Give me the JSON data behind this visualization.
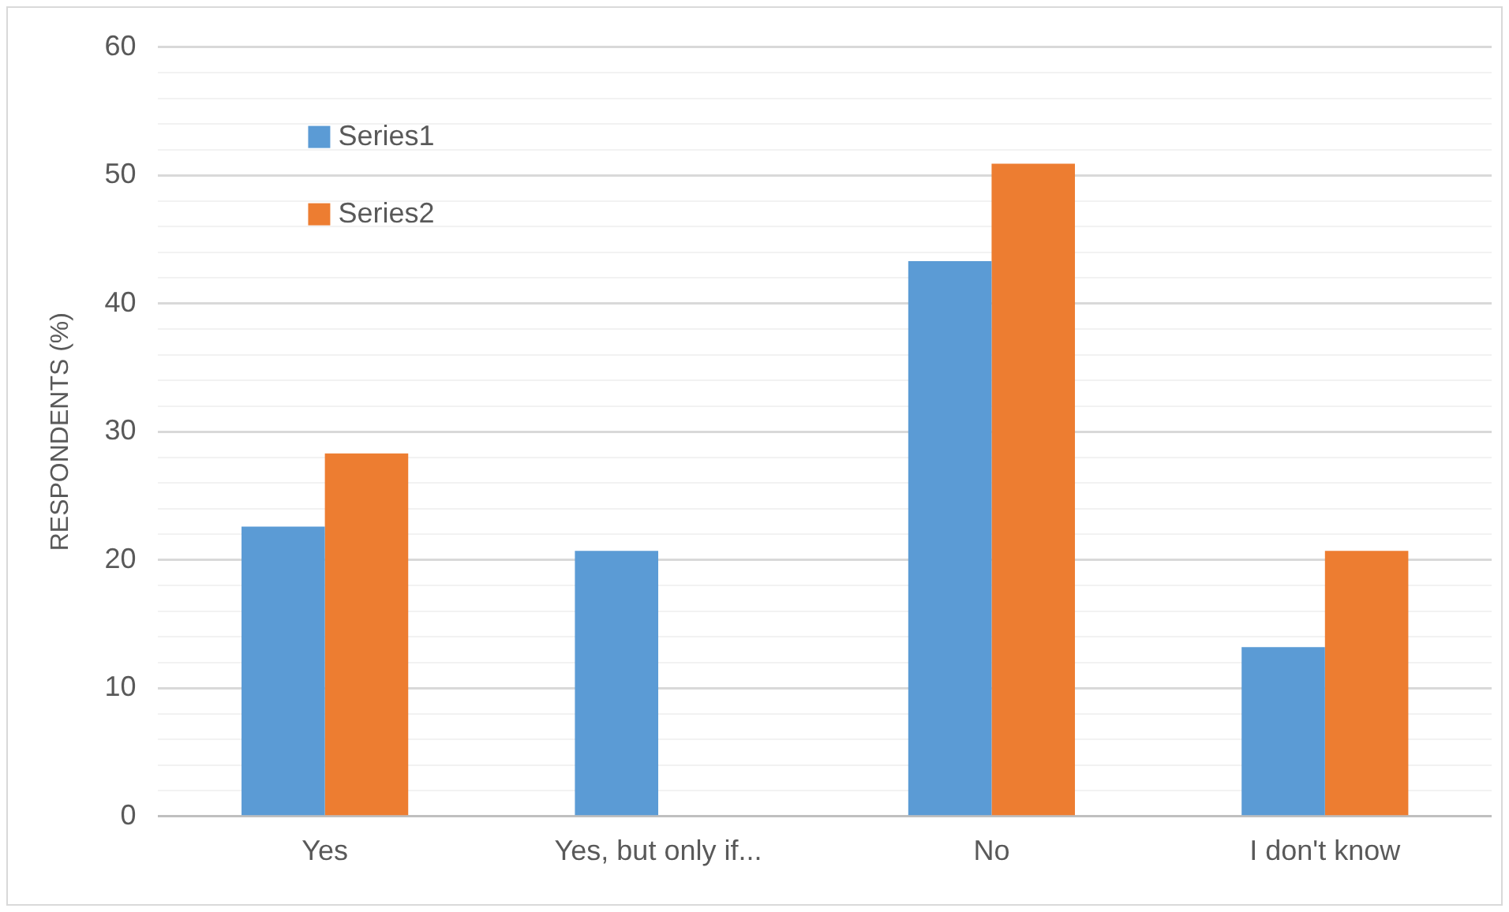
{
  "chart_data": {
    "type": "bar",
    "ylabel": "RESPONDENTS (%)",
    "categories": [
      "Yes",
      "Yes, but only if...",
      "No",
      "I don't know"
    ],
    "series": [
      {
        "name": "Series1",
        "color": "#5b9bd5",
        "values": [
          22.6,
          20.7,
          43.3,
          13.2
        ]
      },
      {
        "name": "Series2",
        "color": "#ed7d31",
        "values": [
          28.3,
          null,
          50.9,
          20.7
        ]
      }
    ],
    "ylim": [
      0,
      60
    ],
    "yticks": [
      0,
      {
        "value": 2,
        "label": null
      },
      {
        "value": 4,
        "label": null
      },
      {
        "value": 6,
        "label": null
      },
      {
        "value": 8,
        "label": null
      },
      10,
      {
        "value": 12,
        "label": null
      },
      {
        "value": 14,
        "label": null
      },
      {
        "value": 16,
        "label": null
      },
      {
        "value": 18,
        "label": null
      },
      20,
      {
        "value": 22,
        "label": null
      },
      {
        "value": 24,
        "label": null
      },
      {
        "value": 26,
        "label": null
      },
      {
        "value": 28,
        "label": null
      },
      30,
      {
        "value": 32,
        "label": null
      },
      {
        "value": 34,
        "label": null
      },
      {
        "value": 36,
        "label": null
      },
      {
        "value": 38,
        "label": null
      },
      40,
      {
        "value": 42,
        "label": null
      },
      {
        "value": 44,
        "label": null
      },
      {
        "value": 46,
        "label": null
      },
      {
        "value": 48,
        "label": null
      },
      50,
      {
        "value": 52,
        "label": null
      },
      {
        "value": 54,
        "label": null
      },
      {
        "value": 56,
        "label": null
      },
      {
        "value": 58,
        "label": null
      },
      60
    ],
    "grid": "y",
    "legend": "top left"
  }
}
